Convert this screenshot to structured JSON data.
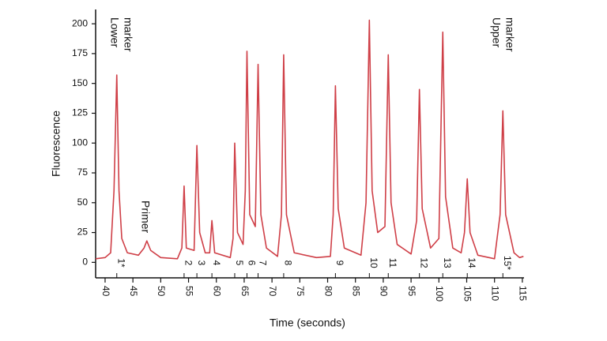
{
  "chart_data": {
    "type": "line",
    "x_label": "Time (seconds)",
    "y_label": "Fluorescence",
    "xlim": [
      38.3,
      115.3
    ],
    "ylim": [
      -13,
      212
    ],
    "xticks": [
      40,
      45,
      50,
      55,
      60,
      65,
      70,
      75,
      80,
      85,
      90,
      95,
      100,
      105,
      110,
      115
    ],
    "yticks": [
      0,
      25,
      50,
      75,
      100,
      125,
      150,
      175,
      200
    ],
    "grid": false,
    "x": [
      38.3,
      40,
      41,
      41.6,
      42.1,
      42.5,
      43,
      44,
      46,
      47,
      47.5,
      48.2,
      50,
      53,
      53.8,
      54.2,
      54.6,
      56,
      56.5,
      57,
      58,
      58.8,
      59.2,
      59.7,
      62.5,
      63,
      63.3,
      63.8,
      64.8,
      65.2,
      65.5,
      66,
      67,
      67.5,
      68,
      69,
      71,
      71.7,
      72.1,
      72.6,
      74,
      78,
      80.5,
      81,
      81.4,
      81.9,
      83,
      86,
      86.9,
      87.5,
      88,
      89,
      90.3,
      90.9,
      91.4,
      92.5,
      95,
      96,
      96.5,
      97,
      98.5,
      100,
      100.7,
      101.2,
      102.5,
      104,
      104.6,
      105.1,
      105.6,
      107,
      110,
      111,
      111.5,
      112,
      113.5,
      114.5,
      115.2
    ],
    "series": [
      {
        "color": "#cf3f47",
        "values": [
          3,
          4,
          8,
          60,
          157,
          60,
          20,
          8,
          6,
          12,
          18,
          10,
          4,
          3,
          12,
          64,
          12,
          10,
          98,
          25,
          8,
          8,
          35,
          8,
          4,
          20,
          100,
          25,
          15,
          60,
          177,
          40,
          30,
          166,
          40,
          12,
          5,
          40,
          174,
          40,
          8,
          4,
          5,
          40,
          148,
          45,
          12,
          6,
          50,
          203,
          60,
          25,
          30,
          174,
          50,
          15,
          7,
          35,
          145,
          45,
          12,
          20,
          193,
          55,
          12,
          8,
          25,
          70,
          25,
          6,
          3,
          40,
          127,
          40,
          8,
          4,
          5
        ]
      }
    ],
    "peak_labels": [
      "1*",
      "2",
      "3",
      "4",
      "5",
      "6",
      "7",
      "8",
      "9",
      "10",
      "11",
      "12",
      "13",
      "14",
      "15*"
    ],
    "peak_x": [
      42.1,
      54.2,
      56.5,
      59.2,
      63.3,
      65.5,
      67.5,
      72.1,
      81.4,
      87.5,
      90.9,
      96.5,
      100.7,
      105.1,
      111.5
    ],
    "peak_label_colors": [
      "#1f9a6a",
      "#111",
      "#111",
      "#111",
      "#111",
      "#111",
      "#111",
      "#111",
      "#111",
      "#111",
      "#111",
      "#111",
      "#111",
      "#111",
      "#1f9a6a"
    ],
    "annotations": [
      {
        "lines": [
          "Lower",
          "marker"
        ]
      },
      {
        "lines": [
          "Primer"
        ]
      },
      {
        "lines": [
          "Upper",
          "marker"
        ]
      }
    ]
  }
}
